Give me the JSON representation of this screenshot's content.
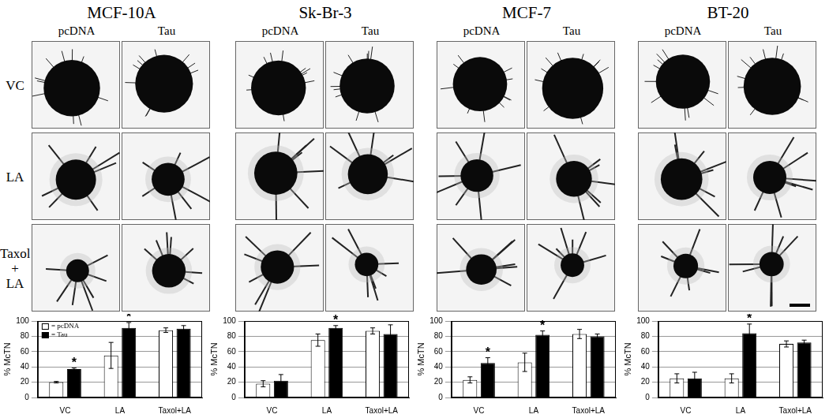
{
  "figure": {
    "row_labels": [
      "VC",
      "LA",
      "Taxol + LA"
    ],
    "panels": [
      {
        "title": "MCF-10A",
        "columns": [
          "pcDNA",
          "Tau"
        ]
      },
      {
        "title": "Sk-Br-3",
        "columns": [
          "pcDNA",
          "Tau"
        ]
      },
      {
        "title": "MCF-7",
        "columns": [
          "pcDNA",
          "Tau"
        ]
      },
      {
        "title": "BT-20",
        "columns": [
          "pcDNA",
          "Tau"
        ]
      }
    ]
  },
  "chart_data": [
    {
      "type": "bar",
      "categories": [
        "VC",
        "LA",
        "Taxol+LA"
      ],
      "y_label": "% McTN",
      "ylim": [
        0,
        100
      ],
      "yticks": [
        0,
        20,
        40,
        60,
        80,
        100
      ],
      "grid": true,
      "legend": "upper left",
      "series": [
        {
          "name": "= pcDNA",
          "color": "#ffffff",
          "values": [
            20,
            55,
            88
          ],
          "errors": [
            1,
            17,
            3
          ]
        },
        {
          "name": "= Tau",
          "color": "#000000",
          "values": [
            37,
            91,
            90
          ],
          "errors": [
            1.5,
            7,
            4
          ]
        }
      ],
      "annotations": [
        {
          "text": "*",
          "category": "VC",
          "series": "= Tau"
        },
        {
          "text": "*",
          "category": "LA",
          "series": "= Tau"
        }
      ]
    },
    {
      "type": "bar",
      "categories": [
        "VC",
        "LA",
        "Taxol+LA"
      ],
      "y_label": "% McTN",
      "ylim": [
        0,
        100
      ],
      "yticks": [
        0,
        20,
        40,
        60,
        80,
        100
      ],
      "grid": true,
      "series": [
        {
          "name": "= pcDNA",
          "color": "#ffffff",
          "values": [
            18,
            75,
            87
          ],
          "errors": [
            4,
            8,
            4
          ]
        },
        {
          "name": "= Tau",
          "color": "#000000",
          "values": [
            22,
            91,
            83
          ],
          "errors": [
            8,
            3,
            12
          ]
        }
      ],
      "annotations": [
        {
          "text": "*",
          "category": "LA",
          "series": "= Tau"
        }
      ]
    },
    {
      "type": "bar",
      "categories": [
        "VC",
        "LA",
        "Taxol+LA"
      ],
      "y_label": "% McTN",
      "ylim": [
        0,
        100
      ],
      "yticks": [
        0,
        20,
        40,
        60,
        80,
        100
      ],
      "grid": true,
      "series": [
        {
          "name": "= pcDNA",
          "color": "#ffffff",
          "values": [
            23,
            46,
            83
          ],
          "errors": [
            4,
            12,
            6
          ]
        },
        {
          "name": "= Tau",
          "color": "#000000",
          "values": [
            45,
            82,
            80
          ],
          "errors": [
            7,
            5,
            3
          ]
        }
      ],
      "annotations": [
        {
          "text": "*",
          "category": "VC",
          "series": "= Tau"
        },
        {
          "text": "*",
          "category": "LA",
          "series": "= Tau"
        }
      ]
    },
    {
      "type": "bar",
      "categories": [
        "VC",
        "LA",
        "Taxol+LA"
      ],
      "y_label": "% McTN",
      "ylim": [
        0,
        100
      ],
      "yticks": [
        0,
        20,
        40,
        60,
        80,
        100
      ],
      "grid": true,
      "series": [
        {
          "name": "= pcDNA",
          "color": "#ffffff",
          "values": [
            25,
            25,
            70
          ],
          "errors": [
            6,
            6,
            4
          ]
        },
        {
          "name": "= Tau",
          "color": "#000000",
          "values": [
            25,
            84,
            72
          ],
          "errors": [
            8,
            12,
            3
          ]
        }
      ],
      "annotations": [
        {
          "text": "*",
          "category": "LA",
          "series": "= Tau"
        }
      ]
    }
  ]
}
